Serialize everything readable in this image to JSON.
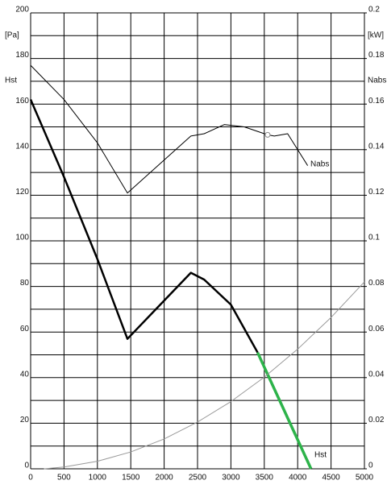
{
  "chart_data": {
    "type": "line",
    "xlim": [
      0,
      5000
    ],
    "xticks": [
      0,
      500,
      1000,
      1500,
      2000,
      2500,
      3000,
      3500,
      4000,
      4500,
      5000
    ],
    "ylim": [
      0,
      200
    ],
    "yticks": [
      0,
      20,
      40,
      60,
      80,
      100,
      120,
      140,
      160,
      180,
      200
    ],
    "yminor_ticks": [
      10,
      30,
      50,
      70,
      90,
      110,
      130,
      150,
      170,
      190
    ],
    "y2lim": [
      0,
      0.2
    ],
    "y2ticks": [
      0,
      0.02,
      0.04,
      0.06,
      0.08,
      0.1,
      0.12,
      0.14,
      0.16,
      0.18,
      0.2
    ],
    "y_unit": "[Pa]",
    "y_label": "Hst",
    "y2_unit": "[kW]",
    "y2_label": "Nabs",
    "annotations": [
      "Nabs",
      "Hst"
    ],
    "grid": true,
    "series": [
      {
        "name": "Hst",
        "color": "#000000",
        "width": 2.5,
        "x": [
          0,
          500,
          1000,
          1450,
          2400,
          2600,
          3000,
          3400
        ],
        "values": [
          162,
          128,
          92,
          57,
          86,
          83,
          72,
          51
        ]
      },
      {
        "color": "#2db34a",
        "width": 3.5,
        "x": [
          3400,
          4200
        ],
        "values": [
          51,
          0
        ]
      },
      {
        "name": "Nabs",
        "color": "#000000",
        "width": 1,
        "axis": "y2",
        "x": [
          0,
          500,
          1000,
          1450,
          2400,
          2600,
          2900,
          3200,
          3550,
          3650,
          3850,
          4150
        ],
        "values": [
          0.177,
          0.162,
          0.143,
          0.121,
          0.146,
          0.147,
          0.151,
          0.15,
          0.1465,
          0.146,
          0.147,
          0.133
        ]
      },
      {
        "color": "#999999",
        "width": 1,
        "x": [
          200,
          500,
          1000,
          1500,
          2000,
          2500,
          3000,
          3500,
          4000,
          4500,
          5000
        ],
        "values": [
          0,
          0.8,
          3.3,
          7.4,
          13.1,
          20.5,
          29.5,
          40.2,
          52.5,
          66.4,
          82
        ]
      }
    ],
    "point": {
      "x": 3550,
      "y": 0.1465,
      "axis": "y2"
    }
  }
}
